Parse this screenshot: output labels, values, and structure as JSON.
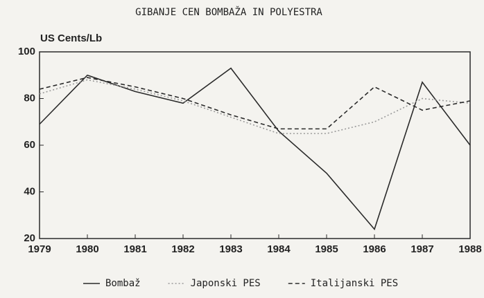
{
  "chart_data": {
    "type": "line",
    "title": "GIBANJE CEN BOMBAŽA IN POLYESTRA",
    "y_label": "US Cents/Lb",
    "categories": [
      "1979",
      "1980",
      "1981",
      "1982",
      "1983",
      "1984",
      "1985",
      "1986",
      "1987",
      "1988"
    ],
    "series": [
      {
        "name": "Bombaž",
        "color": "#2a2a2a",
        "style": "solid",
        "values": [
          69,
          90,
          83,
          78,
          93,
          66,
          48,
          24,
          87,
          60
        ]
      },
      {
        "name": "Japonski PES",
        "color": "#9a9a9a",
        "style": "dotted",
        "values": [
          82,
          88,
          84,
          79,
          72,
          65,
          65,
          70,
          80,
          78
        ]
      },
      {
        "name": "Italijanski PES",
        "color": "#2a2a2a",
        "style": "dashed",
        "values": [
          84,
          89,
          85,
          80,
          73,
          67,
          67,
          85,
          75,
          79
        ]
      }
    ],
    "ylim": [
      20,
      100
    ],
    "yticks": [
      20,
      40,
      60,
      80,
      100
    ]
  }
}
